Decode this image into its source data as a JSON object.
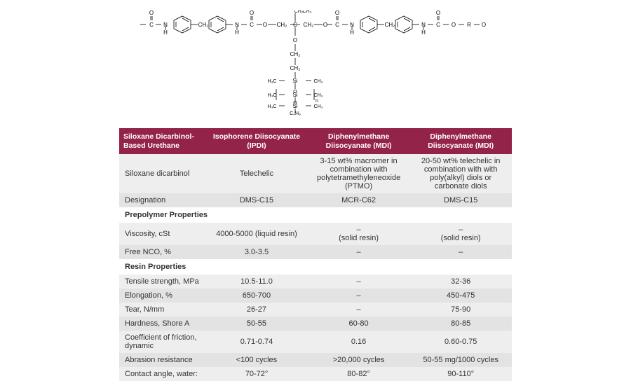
{
  "structure": {
    "labels": [
      "O",
      "C",
      "N",
      "H",
      "CH₂",
      "N",
      "H",
      "C",
      "O",
      "O",
      "CH₂",
      "C",
      "CH₂",
      "O",
      "C",
      "N",
      "H",
      "CH₂",
      "N",
      "H",
      "C",
      "O",
      "R",
      "O",
      "O",
      "CH₂",
      "CH₂",
      "CH₂",
      "CH₂",
      "H₃C",
      "Si",
      "CH₃",
      "O",
      "H₃C",
      "Si",
      "CH₃",
      "O",
      "H₃C",
      "Si",
      "CH₃",
      "C₄H₉",
      "CH₂",
      "CH₃"
    ],
    "stroke": "#000000",
    "font": "10px Arial"
  },
  "table": {
    "headerBg": "#94234a",
    "headerColor": "#ffffff",
    "rowBg": "#eeeeee",
    "rowBgAlt": "#e3e3e3",
    "columns": [
      "Siloxane Dicarbinol-Based Urethane",
      "Isophorene Diisocyanate (IPDI)",
      "Diphenylmethane Diisocyanate (MDI)",
      "Diphenylmethane Diisocyanate (MDI)"
    ],
    "rows": [
      {
        "type": "data",
        "alt": false,
        "cells": [
          "Siloxane dicarbinol",
          "Telechelic",
          "3-15 wt% macromer in combination with polytetramethyleneoxide (PTMO)",
          "20-50 wt% telechelic in combination with with poly(alkyl) diols or carbonate diols"
        ]
      },
      {
        "type": "data",
        "alt": true,
        "cells": [
          "Designation",
          "DMS-C15",
          "MCR-C62",
          "DMS-C15"
        ]
      },
      {
        "type": "section",
        "label": "Prepolymer Properties"
      },
      {
        "type": "data",
        "alt": false,
        "cells": [
          "Viscosity, cSt",
          "4000-5000 (liquid resin)",
          "– (solid resin)",
          "– (solid resin)"
        ]
      },
      {
        "type": "data",
        "alt": true,
        "cells": [
          "Free NCO, %",
          "3.0-3.5",
          "–",
          "–"
        ]
      },
      {
        "type": "section",
        "label": "Resin Properties"
      },
      {
        "type": "data",
        "alt": false,
        "cells": [
          "Tensile strength, MPa",
          "10.5-11.0",
          "–",
          "32-36"
        ]
      },
      {
        "type": "data",
        "alt": true,
        "cells": [
          "Elongation, %",
          "650-700",
          "–",
          "450-475"
        ]
      },
      {
        "type": "data",
        "alt": false,
        "cells": [
          "Tear, N/mm",
          "26-27",
          "–",
          "75-90"
        ]
      },
      {
        "type": "data",
        "alt": true,
        "cells": [
          "Hardness, Shore A",
          "50-55",
          "60-80",
          "80-85"
        ]
      },
      {
        "type": "data",
        "alt": false,
        "cells": [
          "Coefficient of friction, dynamic",
          "0.71-0.74",
          "0.16",
          "0.60-0.75"
        ]
      },
      {
        "type": "data",
        "alt": true,
        "cells": [
          "Abrasion resistance",
          "<100 cycles",
          ">20,000 cycles",
          "50-55 mg/1000 cycles"
        ]
      },
      {
        "type": "data",
        "alt": false,
        "cells": [
          "Contact angle, water:",
          "70-72°",
          "80-82°",
          "90-110°"
        ]
      }
    ]
  }
}
